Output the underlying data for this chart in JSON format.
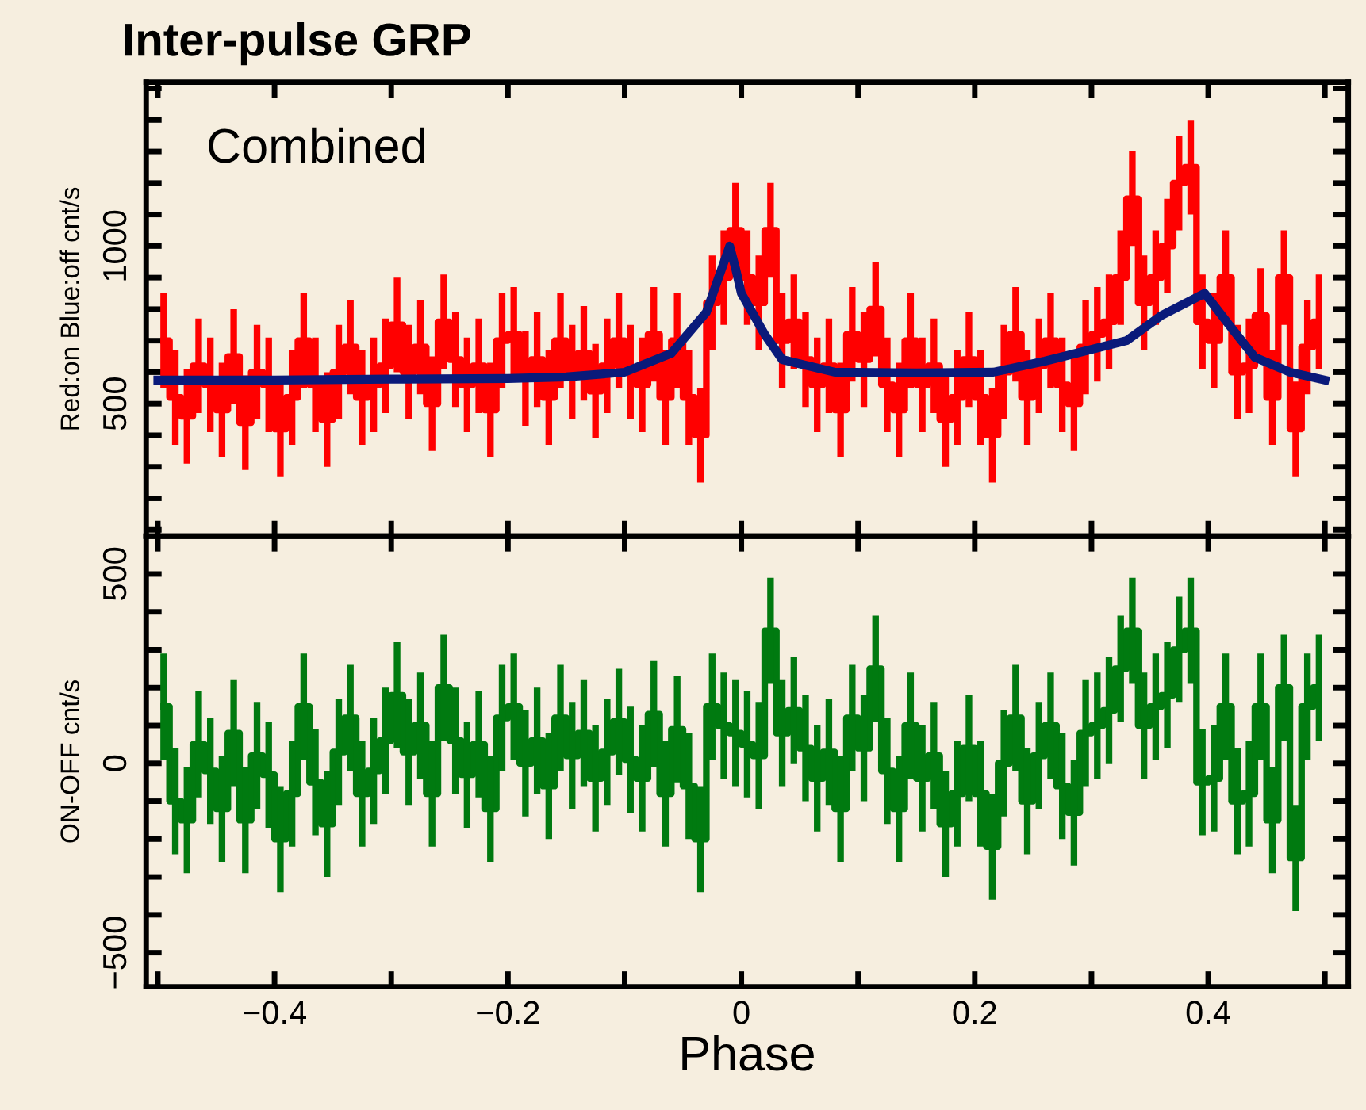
{
  "chart_data": [
    {
      "type": "step",
      "title": "Inter-pulse GRP",
      "ylabel": "Red:on Blue:off cnt/s",
      "annotations": [
        "Combined"
      ],
      "x": [
        -0.495,
        -0.485,
        -0.475,
        -0.465,
        -0.455,
        -0.445,
        -0.435,
        -0.425,
        -0.415,
        -0.405,
        -0.395,
        -0.385,
        -0.375,
        -0.365,
        -0.355,
        -0.345,
        -0.335,
        -0.325,
        -0.315,
        -0.305,
        -0.295,
        -0.285,
        -0.275,
        -0.265,
        -0.255,
        -0.245,
        -0.235,
        -0.225,
        -0.215,
        -0.205,
        -0.195,
        -0.185,
        -0.175,
        -0.165,
        -0.155,
        -0.145,
        -0.135,
        -0.125,
        -0.115,
        -0.105,
        -0.095,
        -0.085,
        -0.075,
        -0.065,
        -0.055,
        -0.045,
        -0.035,
        -0.025,
        -0.015,
        -0.005,
        0.005,
        0.015,
        0.025,
        0.035,
        0.045,
        0.055,
        0.065,
        0.075,
        0.085,
        0.095,
        0.105,
        0.115,
        0.125,
        0.135,
        0.145,
        0.155,
        0.165,
        0.175,
        0.185,
        0.195,
        0.205,
        0.215,
        0.225,
        0.235,
        0.245,
        0.255,
        0.265,
        0.275,
        0.285,
        0.295,
        0.305,
        0.315,
        0.325,
        0.335,
        0.345,
        0.355,
        0.365,
        0.375,
        0.385,
        0.395,
        0.405,
        0.415,
        0.425,
        0.435,
        0.445,
        0.455,
        0.465,
        0.475,
        0.485,
        0.495
      ],
      "series": [
        {
          "type": "step",
          "color": "#ff0000",
          "values": [
            700,
            520,
            460,
            620,
            560,
            480,
            650,
            440,
            600,
            560,
            420,
            520,
            700,
            560,
            450,
            600,
            680,
            520,
            560,
            620,
            750,
            600,
            680,
            500,
            760,
            640,
            560,
            620,
            480,
            700,
            720,
            580,
            640,
            520,
            700,
            600,
            660,
            540,
            620,
            700,
            600,
            560,
            720,
            520,
            700,
            520,
            400,
            820,
            900,
            1050,
            900,
            820,
            1050,
            700,
            760,
            640,
            560,
            620,
            480,
            720,
            640,
            800,
            560,
            480,
            700,
            560,
            620,
            450,
            520,
            640,
            520,
            400,
            600,
            720,
            520,
            620,
            700,
            560,
            500,
            680,
            720,
            760,
            900,
            1150,
            820,
            900,
            1000,
            1200,
            1250,
            760,
            700,
            900,
            600,
            620,
            780,
            520,
            900,
            420,
            680,
            760
          ],
          "errors": [
            150,
            150,
            150,
            150,
            150,
            150,
            150,
            150,
            150,
            150,
            150,
            150,
            150,
            150,
            150,
            150,
            150,
            150,
            150,
            150,
            150,
            150,
            150,
            150,
            150,
            150,
            150,
            150,
            150,
            150,
            150,
            150,
            150,
            150,
            150,
            150,
            150,
            150,
            150,
            150,
            150,
            150,
            150,
            150,
            150,
            150,
            150,
            150,
            150,
            150,
            150,
            150,
            150,
            150,
            150,
            150,
            150,
            150,
            150,
            150,
            150,
            150,
            150,
            150,
            150,
            150,
            150,
            150,
            150,
            150,
            150,
            150,
            150,
            150,
            150,
            150,
            150,
            150,
            150,
            150,
            150,
            150,
            150,
            150,
            150,
            150,
            150,
            150,
            150,
            150,
            150,
            150,
            150,
            150,
            150,
            150,
            150,
            150,
            150,
            150
          ]
        },
        {
          "type": "line",
          "color": "#0a1a7a",
          "x": [
            -0.5,
            -0.4,
            -0.3,
            -0.2,
            -0.15,
            -0.1,
            -0.06,
            -0.03,
            -0.01,
            -0.005,
            0.0,
            0.02,
            0.035,
            0.08,
            0.15,
            0.216,
            0.26,
            0.33,
            0.36,
            0.397,
            0.42,
            0.44,
            0.47,
            0.5
          ],
          "values": [
            575,
            575,
            578,
            580,
            585,
            600,
            660,
            790,
            1000,
            930,
            850,
            720,
            640,
            600,
            598,
            600,
            635,
            700,
            780,
            850,
            740,
            647,
            600,
            575
          ]
        }
      ],
      "xlim": [
        -0.51,
        0.52
      ],
      "xticks": [
        {
          "value": -0.5,
          "label": null
        },
        {
          "value": -0.4,
          "label": null
        },
        {
          "value": -0.3,
          "label": null
        },
        {
          "value": -0.2,
          "label": null
        },
        {
          "value": -0.1,
          "label": null
        },
        {
          "value": 0,
          "label": null
        },
        {
          "value": 0.1,
          "label": null
        },
        {
          "value": 0.2,
          "label": null
        },
        {
          "value": 0.3,
          "label": null
        },
        {
          "value": 0.4,
          "label": null
        },
        {
          "value": 0.5,
          "label": null
        }
      ],
      "ylim": [
        80,
        1520
      ],
      "yticks": [
        {
          "value": 100,
          "label": null
        },
        {
          "value": 200,
          "label": null
        },
        {
          "value": 300,
          "label": null
        },
        {
          "value": 400,
          "label": null
        },
        500,
        {
          "value": 600,
          "label": null
        },
        {
          "value": 700,
          "label": null
        },
        {
          "value": 800,
          "label": null
        },
        {
          "value": 900,
          "label": null
        },
        1000,
        {
          "value": 1100,
          "label": null
        },
        {
          "value": 1200,
          "label": null
        },
        {
          "value": 1300,
          "label": null
        },
        {
          "value": 1400,
          "label": null
        },
        {
          "value": 1500,
          "label": null
        }
      ],
      "tick_labels": "y"
    },
    {
      "type": "step",
      "xlabel": "Phase",
      "ylabel": "ON-OFF cnt/s",
      "x": [
        -0.495,
        -0.485,
        -0.475,
        -0.465,
        -0.455,
        -0.445,
        -0.435,
        -0.425,
        -0.415,
        -0.405,
        -0.395,
        -0.385,
        -0.375,
        -0.365,
        -0.355,
        -0.345,
        -0.335,
        -0.325,
        -0.315,
        -0.305,
        -0.295,
        -0.285,
        -0.275,
        -0.265,
        -0.255,
        -0.245,
        -0.235,
        -0.225,
        -0.215,
        -0.205,
        -0.195,
        -0.185,
        -0.175,
        -0.165,
        -0.155,
        -0.145,
        -0.135,
        -0.125,
        -0.115,
        -0.105,
        -0.095,
        -0.085,
        -0.075,
        -0.065,
        -0.055,
        -0.045,
        -0.035,
        -0.025,
        -0.015,
        -0.005,
        0.005,
        0.015,
        0.025,
        0.035,
        0.045,
        0.055,
        0.065,
        0.075,
        0.085,
        0.095,
        0.105,
        0.115,
        0.125,
        0.135,
        0.145,
        0.155,
        0.165,
        0.175,
        0.185,
        0.195,
        0.205,
        0.215,
        0.225,
        0.235,
        0.245,
        0.255,
        0.265,
        0.275,
        0.285,
        0.295,
        0.305,
        0.315,
        0.325,
        0.335,
        0.345,
        0.355,
        0.365,
        0.375,
        0.385,
        0.395,
        0.405,
        0.415,
        0.425,
        0.435,
        0.445,
        0.455,
        0.465,
        0.475,
        0.485,
        0.495
      ],
      "series": [
        {
          "color": "#007a10",
          "values": [
            150,
            -100,
            -150,
            50,
            -20,
            -120,
            80,
            -150,
            20,
            -30,
            -200,
            -80,
            150,
            -50,
            -160,
            30,
            120,
            -80,
            -20,
            60,
            180,
            30,
            100,
            -80,
            200,
            60,
            -30,
            50,
            -120,
            120,
            150,
            0,
            60,
            -60,
            120,
            20,
            80,
            -40,
            30,
            110,
            10,
            -40,
            130,
            -80,
            90,
            -60,
            -200,
            150,
            100,
            80,
            50,
            20,
            350,
            80,
            140,
            40,
            -40,
            30,
            -120,
            120,
            40,
            250,
            -20,
            -120,
            100,
            -40,
            20,
            -160,
            -80,
            40,
            -80,
            -220,
            0,
            120,
            -100,
            20,
            100,
            -60,
            -130,
            80,
            100,
            140,
            250,
            350,
            100,
            150,
            180,
            300,
            350,
            -50,
            -40,
            150,
            -100,
            -80,
            150,
            -150,
            200,
            -250,
            150,
            200
          ],
          "errors": [
            140,
            140,
            140,
            140,
            140,
            140,
            140,
            140,
            140,
            140,
            140,
            140,
            140,
            140,
            140,
            140,
            140,
            140,
            140,
            140,
            140,
            140,
            140,
            140,
            140,
            140,
            140,
            140,
            140,
            140,
            140,
            140,
            140,
            140,
            140,
            140,
            140,
            140,
            140,
            140,
            140,
            140,
            140,
            140,
            140,
            140,
            140,
            140,
            140,
            140,
            140,
            140,
            140,
            140,
            140,
            140,
            140,
            140,
            140,
            140,
            140,
            140,
            140,
            140,
            140,
            140,
            140,
            140,
            140,
            140,
            140,
            140,
            140,
            140,
            140,
            140,
            140,
            140,
            140,
            140,
            140,
            140,
            140,
            140,
            140,
            140,
            140,
            140,
            140,
            140,
            140,
            140,
            140,
            140,
            140,
            140,
            140,
            140,
            140,
            140
          ]
        }
      ],
      "xlim": [
        -0.51,
        0.52
      ],
      "xticks": [
        {
          "value": -0.5,
          "label": null
        },
        {
          "value": -0.4,
          "label": "−0.4"
        },
        {
          "value": -0.3,
          "label": null
        },
        {
          "value": -0.2,
          "label": "−0.2"
        },
        {
          "value": -0.1,
          "label": null
        },
        0,
        {
          "value": 0.1,
          "label": null
        },
        0.2,
        {
          "value": 0.3,
          "label": null
        },
        0.4,
        {
          "value": 0.5,
          "label": null
        }
      ],
      "ylim": [
        -590,
        600
      ],
      "yticks": [
        {
          "value": -500,
          "label": "−500"
        },
        {
          "value": -400,
          "label": null
        },
        {
          "value": -300,
          "label": null
        },
        {
          "value": -200,
          "label": null
        },
        {
          "value": -100,
          "label": null
        },
        0,
        {
          "value": 100,
          "label": null
        },
        {
          "value": 200,
          "label": null
        },
        {
          "value": 300,
          "label": null
        },
        {
          "value": 400,
          "label": null
        },
        500
      ]
    }
  ]
}
